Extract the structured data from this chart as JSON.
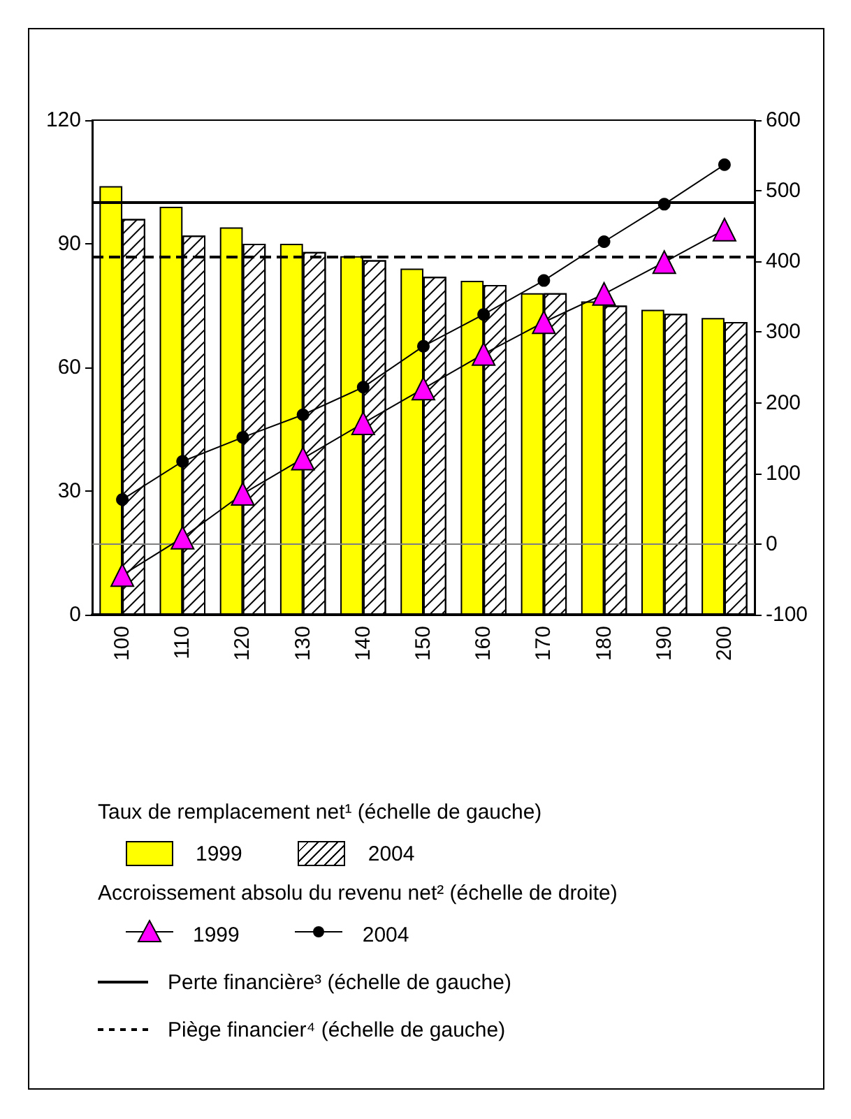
{
  "chart_data": {
    "type": "bar",
    "categories": [
      "100",
      "110",
      "120",
      "130",
      "140",
      "150",
      "160",
      "170",
      "180",
      "190",
      "200"
    ],
    "series": [
      {
        "name": "1999",
        "color": "#ffff00",
        "values": [
          104,
          99,
          94,
          90,
          87,
          84,
          81,
          78,
          76,
          74,
          72
        ]
      },
      {
        "name": "2004",
        "color": "#ffffff",
        "values": [
          96,
          92,
          90,
          88,
          86,
          82,
          80,
          78,
          75,
          73,
          71
        ]
      },
      {
        "name": "1999",
        "type": "line",
        "axis": "y2",
        "marker": "triangle",
        "color": "#ff00ff",
        "values": [
          -44,
          9,
          71,
          121,
          171,
          220,
          269,
          314,
          354,
          399,
          445
        ]
      },
      {
        "name": "2004",
        "type": "line",
        "axis": "y2",
        "marker": "circle",
        "color": "#000000",
        "values": [
          63,
          117,
          151,
          183,
          222,
          280,
          325,
          373,
          428,
          481,
          537
        ]
      }
    ],
    "ylim": [
      0,
      120
    ],
    "yticks": [
      0,
      30,
      60,
      90,
      120
    ],
    "y2lim": [
      -100,
      600
    ],
    "y2ticks": [
      -100,
      0,
      100,
      200,
      300,
      400,
      500,
      600
    ],
    "ref_lines": [
      {
        "axis": "y",
        "value": 100,
        "label": "Perte financière³ (échelle de gauche)",
        "color": "#000000",
        "line_style": "solid"
      },
      {
        "axis": "y",
        "value": 87,
        "label": "Piège financier⁴ (échelle de gauche)",
        "color": "#000000",
        "line_style": "dashed"
      },
      {
        "axis": "y2",
        "value": 0,
        "color": "#808080",
        "line_style": "solid"
      }
    ],
    "annotations": [
      "Taux de remplacement net¹ (échelle de gauche)",
      "Accroissement absolu du revenu net² (échelle de droite)"
    ],
    "grid": false,
    "legend": "bottom",
    "line_style": "solid"
  }
}
